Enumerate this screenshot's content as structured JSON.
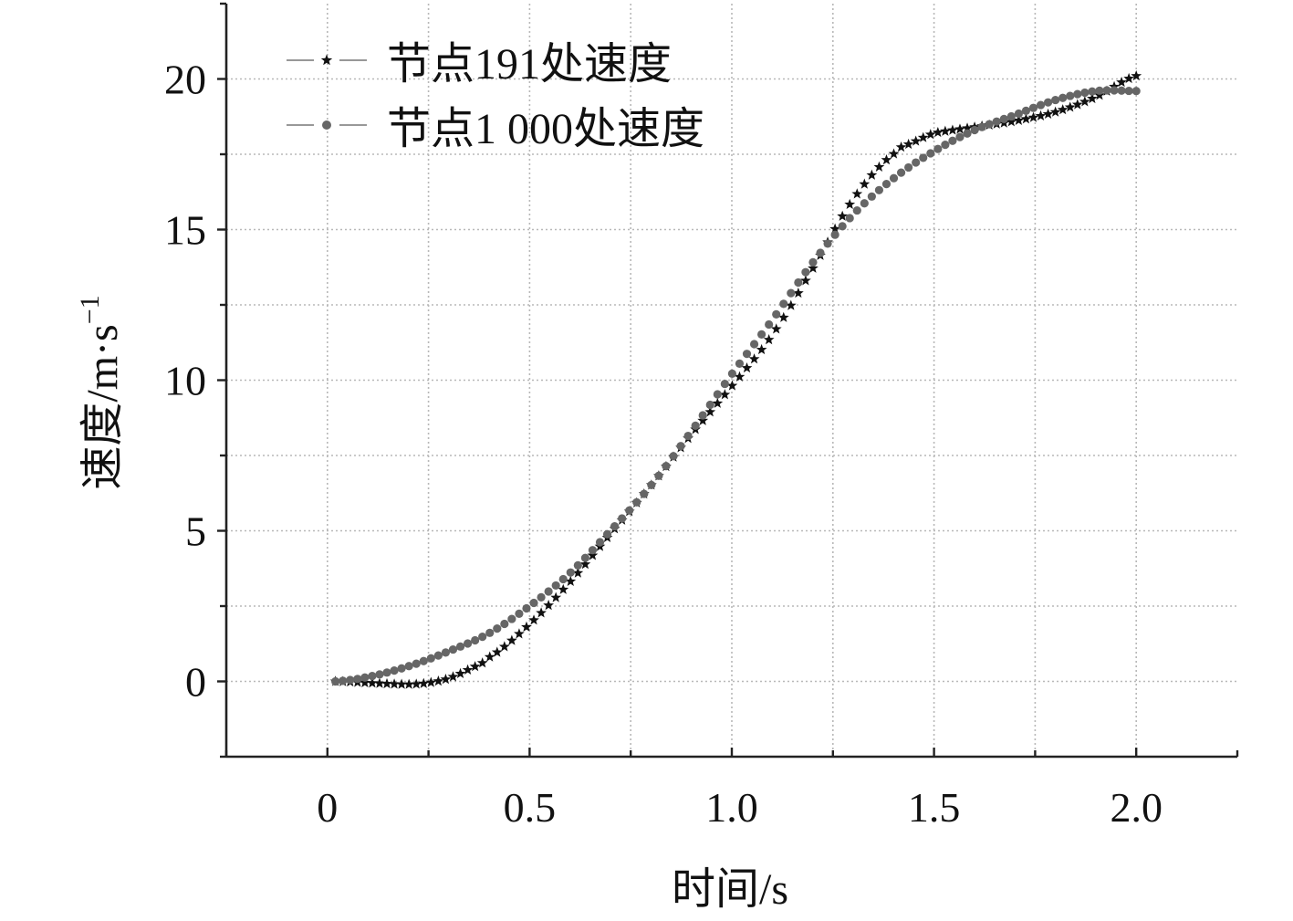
{
  "chart_data": {
    "type": "scatter",
    "title": "",
    "xlabel": "时间/s",
    "ylabel": "速度/m·s",
    "ylabel_sup": "−1",
    "xlim": [
      -0.25,
      2.25
    ],
    "ylim": [
      -2.5,
      22.5
    ],
    "x_ticks": [
      0,
      0.5,
      1.0,
      1.5,
      2.0
    ],
    "x_tick_labels": [
      "0",
      "0.5",
      "1.0",
      "1.5",
      "2.0"
    ],
    "y_ticks": [
      0,
      5,
      10,
      15,
      20
    ],
    "y_tick_labels": [
      "0",
      "5",
      "10",
      "15",
      "20"
    ],
    "grid": true,
    "legend_position": "top-left",
    "series": [
      {
        "name": "节点191处速度",
        "marker": "star",
        "color": "#111111",
        "x": [
          0.02,
          0.1,
          0.2,
          0.25,
          0.3,
          0.35,
          0.4,
          0.5,
          0.6,
          0.7,
          0.8,
          0.9,
          1.0,
          1.1,
          1.2,
          1.3,
          1.4,
          1.45,
          1.5,
          1.6,
          1.7,
          1.8,
          1.9,
          2.0
        ],
        "y": [
          0.0,
          -0.05,
          -0.1,
          -0.05,
          0.1,
          0.4,
          0.8,
          1.9,
          3.3,
          4.9,
          6.5,
          8.2,
          9.8,
          11.5,
          13.7,
          16.0,
          17.5,
          17.9,
          18.2,
          18.4,
          18.6,
          18.9,
          19.4,
          20.1
        ]
      },
      {
        "name": "节点1 000处速度",
        "marker": "circle",
        "color": "#666666",
        "x": [
          0.02,
          0.1,
          0.2,
          0.3,
          0.4,
          0.5,
          0.6,
          0.7,
          0.8,
          0.9,
          1.0,
          1.1,
          1.2,
          1.3,
          1.4,
          1.5,
          1.6,
          1.7,
          1.8,
          1.9,
          2.0
        ],
        "y": [
          0.0,
          0.15,
          0.5,
          1.0,
          1.6,
          2.5,
          3.6,
          5.0,
          6.5,
          8.3,
          10.2,
          12.0,
          13.9,
          15.5,
          16.7,
          17.6,
          18.3,
          18.8,
          19.3,
          19.6,
          19.6
        ]
      }
    ]
  }
}
